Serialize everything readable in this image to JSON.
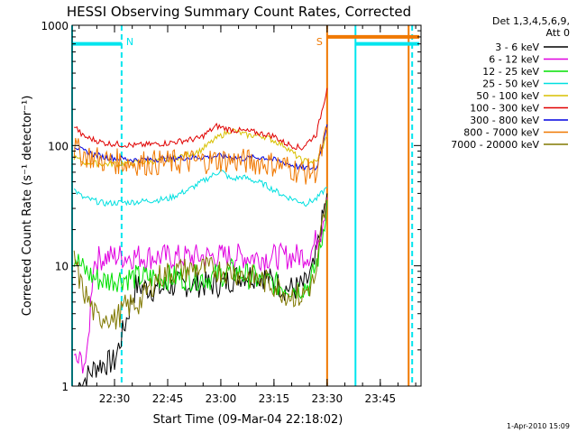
{
  "chart_data": {
    "type": "line",
    "title": "HESSI Observing Summary Count Rates, Corrected",
    "xlabel": "Start Time (09-Mar-04 22:18:02)",
    "ylabel": "Corrected Count Rate (s⁻¹ detector⁻¹)",
    "yscale": "log",
    "ylim": [
      1,
      1000
    ],
    "xlim": [
      "22:18:02",
      "23:56:30"
    ],
    "x_ticks": [
      "22:30",
      "22:45",
      "23:00",
      "23:15",
      "23:30",
      "23:45"
    ],
    "y_ticks": [
      "1",
      "10",
      "100",
      "1000"
    ],
    "legend_header": [
      "Det 1,3,4,5,6,9,",
      "Att 0"
    ],
    "legend_placement": "right",
    "timestamp": "1-Apr-2010 15:09",
    "markers": [
      {
        "label": "N",
        "time": "22:32",
        "color": "#00e5ee"
      },
      {
        "label": "S",
        "time": "23:30",
        "color": "#f07800"
      }
    ],
    "series": [
      {
        "name": "3 - 6 keV",
        "color": "#000000",
        "t": [
          22.33,
          22.42,
          22.5,
          22.6,
          22.7,
          22.8,
          23.0,
          23.1,
          23.2,
          23.3,
          23.35,
          23.4,
          23.44,
          23.47,
          23.5
        ],
        "v": [
          1,
          1.5,
          1.6,
          6.8,
          6.3,
          7.0,
          7.0,
          8.5,
          8.2,
          6.5,
          6.5,
          7,
          10,
          20,
          40
        ]
      },
      {
        "name": "6 - 12 keV",
        "color": "#e000e0",
        "t": [
          22.31,
          22.37,
          22.4,
          22.42,
          22.5,
          22.6,
          22.8,
          23.0,
          23.1,
          23.2,
          23.35,
          23.42,
          23.47,
          23.5
        ],
        "v": [
          1.6,
          1.6,
          10.5,
          11.5,
          12,
          12,
          11.8,
          12,
          12,
          11.8,
          12,
          12.5,
          20,
          37
        ]
      },
      {
        "name": "12 - 25 keV",
        "color": "#00e000",
        "t": [
          22.31,
          22.35,
          22.4,
          22.45,
          22.55,
          22.65,
          22.8,
          22.95,
          23.05,
          23.15,
          23.25,
          23.35,
          23.42,
          23.47,
          23.5
        ],
        "v": [
          12,
          9.5,
          8,
          7.5,
          8,
          8,
          8,
          8,
          9,
          8,
          7,
          6.5,
          7,
          14,
          35
        ]
      },
      {
        "name": "25 - 50 keV",
        "color": "#00e0e0",
        "t": [
          22.31,
          22.35,
          22.45,
          22.6,
          22.75,
          22.85,
          22.95,
          23.0,
          23.05,
          23.1,
          23.2,
          23.3,
          23.4,
          23.45,
          23.5
        ],
        "v": [
          43,
          37,
          33,
          34,
          36,
          43,
          55,
          62,
          52,
          55,
          48,
          38,
          33,
          36,
          45
        ]
      },
      {
        "name": "50 - 100 keV",
        "color": "#d8c000",
        "t": [
          22.31,
          22.35,
          22.45,
          22.6,
          22.75,
          22.9,
          22.98,
          23.05,
          23.12,
          23.2,
          23.3,
          23.38,
          23.45,
          23.5
        ],
        "v": [
          80,
          73,
          70,
          72,
          76,
          90,
          115,
          135,
          122,
          120,
          100,
          75,
          73,
          120
        ]
      },
      {
        "name": "100 - 300 keV",
        "color": "#e00000",
        "t": [
          22.31,
          22.35,
          22.45,
          22.6,
          22.75,
          22.9,
          22.98,
          23.05,
          23.15,
          23.25,
          23.3,
          23.38,
          23.45,
          23.5
        ],
        "v": [
          148,
          120,
          105,
          100,
          105,
          115,
          145,
          135,
          130,
          120,
          105,
          95,
          125,
          300
        ]
      },
      {
        "name": "300 - 800 keV",
        "color": "#0000e0",
        "t": [
          22.31,
          22.35,
          22.45,
          22.6,
          22.75,
          22.9,
          23.0,
          23.1,
          23.2,
          23.3,
          23.38,
          23.45,
          23.5
        ],
        "v": [
          100,
          90,
          80,
          76,
          78,
          80,
          82,
          78,
          80,
          72,
          65,
          65,
          150
        ]
      },
      {
        "name": "800 - 7000 keV",
        "color": "#f07800",
        "t": [
          22.31,
          22.35,
          22.45,
          22.6,
          22.75,
          22.9,
          23.0,
          23.1,
          23.2,
          23.3,
          23.38,
          23.45,
          23.5
        ],
        "v": [
          95,
          85,
          75,
          72,
          72,
          74,
          76,
          74,
          72,
          68,
          60,
          62,
          130
        ]
      },
      {
        "name": "7000 - 20000 keV",
        "color": "#807800",
        "t": [
          22.31,
          22.34,
          22.38,
          22.42,
          22.46,
          22.5,
          22.55,
          22.62,
          22.7,
          22.78,
          22.9,
          23.05,
          23.15,
          23.25,
          23.3,
          23.38,
          23.45,
          23.47,
          23.5
        ],
        "v": [
          12,
          7,
          5,
          3.5,
          4,
          3.5,
          4.5,
          5,
          8,
          9,
          9.5,
          9,
          8,
          7,
          6,
          5.5,
          8,
          18,
          36
        ]
      }
    ],
    "flags": [
      {
        "color": "#00e5ee",
        "start": "22:18",
        "end": "22:32",
        "level": 700
      },
      {
        "color": "#f07800",
        "start": "23:30",
        "end": "23:56",
        "level": 800
      },
      {
        "color": "#00e5ee",
        "start": "23:38",
        "end": "23:56",
        "level": 700
      }
    ],
    "vlines": [
      {
        "color": "#00e5ee",
        "time": "22:18:02",
        "style": "solid"
      },
      {
        "color": "#00e5ee",
        "time": "22:32",
        "style": "dashed"
      },
      {
        "color": "#f07800",
        "time": "23:30",
        "style": "solid"
      },
      {
        "color": "#00e5ee",
        "time": "23:38",
        "style": "solid"
      },
      {
        "color": "#f07800",
        "time": "23:53",
        "style": "solid"
      },
      {
        "color": "#00e5ee",
        "time": "23:54",
        "style": "dashed"
      }
    ]
  }
}
